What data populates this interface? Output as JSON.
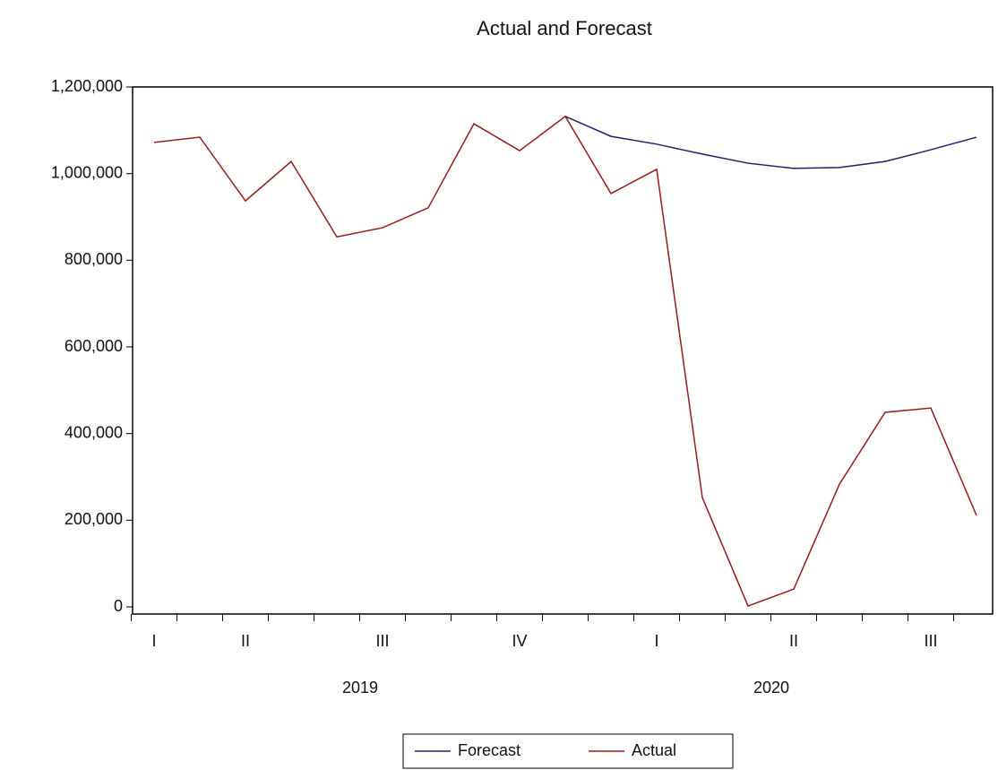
{
  "chart_data": {
    "type": "line",
    "title": "Actual and Forecast",
    "categories": [
      "I",
      null,
      "II",
      null,
      null,
      "III",
      null,
      null,
      "IV",
      null,
      null,
      "I",
      null,
      null,
      "II",
      null,
      null,
      "III",
      null
    ],
    "year_labels": [
      null,
      null,
      null,
      null,
      null,
      "2019",
      null,
      null,
      null,
      null,
      null,
      null,
      null,
      null,
      "2020",
      null,
      null,
      null,
      null
    ],
    "series": [
      {
        "name": "Forecast",
        "color": "#1f1f6e",
        "values": [
          null,
          null,
          null,
          null,
          null,
          null,
          null,
          null,
          null,
          1132000,
          1086000,
          1068000,
          1045000,
          1024000,
          1012000,
          1014000,
          1028000,
          1055000,
          1084000
        ]
      },
      {
        "name": "Actual",
        "color": "#a01818",
        "values": [
          1072000,
          1084000,
          937000,
          1028000,
          854000,
          875000,
          921000,
          1115000,
          1053000,
          1132000,
          954000,
          1010000,
          252000,
          2000,
          41000,
          283000,
          449000,
          459000,
          211000
        ]
      }
    ],
    "ylim": [
      0,
      1200000
    ],
    "yticks": [
      {
        "value": 0,
        "label": "0"
      },
      {
        "value": 200000,
        "label": "200,000"
      },
      {
        "value": 400000,
        "label": "400,000"
      },
      {
        "value": 600000,
        "label": "600,000"
      },
      {
        "value": 800000,
        "label": "800,000"
      },
      {
        "value": 1000000,
        "label": "1,000,000"
      },
      {
        "value": 1200000,
        "label": "1,200,000"
      }
    ],
    "grid": false
  }
}
